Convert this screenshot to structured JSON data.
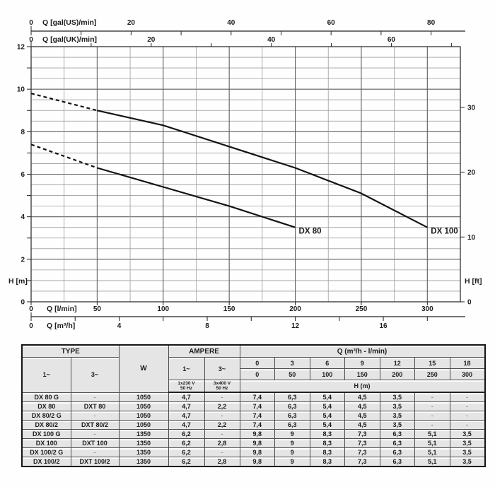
{
  "chart": {
    "top_axis_us": {
      "label": "Q [gal(US)/min]",
      "labeled_ticks": [
        0,
        20,
        40,
        60,
        80
      ],
      "minor_step": 10,
      "max": 85
    },
    "top_axis_uk": {
      "label": "Q [gal(UK)/min]",
      "labeled_ticks": [
        0,
        20,
        40,
        60
      ],
      "minor_step": 10,
      "max": 70
    },
    "left_axis": {
      "label": "H [m]",
      "labeled_ticks": [
        0,
        2,
        4,
        6,
        8,
        10,
        12
      ]
    },
    "right_axis": {
      "label": "H [ft]",
      "labeled_ticks": [
        0,
        10,
        20,
        30
      ]
    },
    "bottom_axis_lmin": {
      "label": "Q [l/min]",
      "labeled_ticks": [
        0,
        50,
        100,
        150,
        200,
        250,
        300
      ]
    },
    "bottom_axis_m3h": {
      "label": "Q [m³/h]",
      "labeled_ticks": [
        0,
        4,
        8,
        12,
        16
      ],
      "minor_step": 2,
      "max": 18
    }
  },
  "chart_data": {
    "type": "line",
    "title": "",
    "xlabel": "Q [l/min]",
    "ylabel": "H [m]",
    "xlim": [
      0,
      325
    ],
    "ylim": [
      0,
      12
    ],
    "grid": {
      "x_minor_step_lmin": 25,
      "x_major_step_lmin": 50,
      "y_minor_step_m": 0.5,
      "y_major_step_m": 2
    },
    "legend_position": "end-of-curve",
    "series": [
      {
        "name": "DX 80",
        "x": [
          0,
          50,
          100,
          150,
          200
        ],
        "values": [
          7.4,
          6.3,
          5.4,
          4.5,
          3.5
        ],
        "dashed_until_x": 50,
        "color": "#141414"
      },
      {
        "name": "DX 100",
        "x": [
          0,
          50,
          100,
          150,
          200,
          250,
          300
        ],
        "values": [
          9.8,
          9.0,
          8.3,
          7.3,
          6.3,
          5.1,
          3.5
        ],
        "dashed_until_x": 50,
        "color": "#141414"
      }
    ]
  },
  "table": {
    "col_type": "TYPE",
    "col_w": "W",
    "col_ampere": "AMPERE",
    "col_q": "Q (m³/h - l/min)",
    "sub_1ph": "1~",
    "sub_3ph": "3~",
    "amp_1ph": "1~",
    "amp_3ph": "3~",
    "volt_1ph": "1x230 V\n50 Hz",
    "volt_3ph": "3x400 V\n50 Hz",
    "q_m3h": [
      "0",
      "3",
      "6",
      "9",
      "12",
      "15",
      "18"
    ],
    "q_lmin": [
      "0",
      "50",
      "100",
      "150",
      "200",
      "250",
      "300"
    ],
    "h_m_header": "H (m)",
    "rows": [
      {
        "t1": "DX 80 G",
        "t3": "-",
        "w": "1050",
        "a1": "4,7",
        "a3": "-",
        "h": [
          "7,4",
          "6,3",
          "5,4",
          "4,5",
          "3,5",
          "-",
          "-"
        ]
      },
      {
        "t1": "DX 80",
        "t3": "DXT 80",
        "w": "1050",
        "a1": "4,7",
        "a3": "2,2",
        "h": [
          "7,4",
          "6,3",
          "5,4",
          "4,5",
          "3,5",
          "-",
          "-"
        ]
      },
      {
        "t1": "DX 80/2 G",
        "t3": "-",
        "w": "1050",
        "a1": "4,7",
        "a3": "-",
        "h": [
          "7,4",
          "6,3",
          "5,4",
          "4,5",
          "3,5",
          "-",
          "-"
        ]
      },
      {
        "t1": "DX 80/2",
        "t3": "DXT 80/2",
        "w": "1050",
        "a1": "4,7",
        "a3": "2,2",
        "h": [
          "7,4",
          "6,3",
          "5,4",
          "4,5",
          "3,5",
          "-",
          "-"
        ]
      },
      {
        "t1": "DX 100 G",
        "t3": "-",
        "w": "1350",
        "a1": "6,2",
        "a3": "-",
        "h": [
          "9,8",
          "9",
          "8,3",
          "7,3",
          "6,3",
          "5,1",
          "3,5"
        ]
      },
      {
        "t1": "DX 100",
        "t3": "DXT 100",
        "w": "1350",
        "a1": "6,2",
        "a3": "2,8",
        "h": [
          "9,8",
          "9",
          "8,3",
          "7,3",
          "6,3",
          "5,1",
          "3,5"
        ]
      },
      {
        "t1": "DX 100/2 G",
        "t3": "-",
        "w": "1350",
        "a1": "6,2",
        "a3": "-",
        "h": [
          "9,8",
          "9",
          "8,3",
          "7,3",
          "6,3",
          "5,1",
          "3,5"
        ]
      },
      {
        "t1": "DX 100/2",
        "t3": "DXT 100/2",
        "w": "1350",
        "a1": "6,2",
        "a3": "2,8",
        "h": [
          "9,8",
          "9",
          "8,3",
          "7,3",
          "6,3",
          "5,1",
          "3,5"
        ]
      }
    ]
  }
}
